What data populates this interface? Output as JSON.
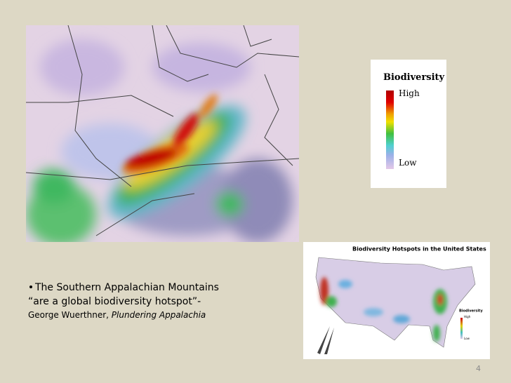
{
  "main_map": {
    "legend": {
      "title": "Biodiversity",
      "high": "High",
      "low": "Low"
    }
  },
  "inset_map": {
    "title": "Biodiversity Hotspots in the United States",
    "legend": {
      "title": "Biodiversity",
      "high": "High",
      "low": "Low"
    }
  },
  "quote": {
    "line1": "The Southern Appalachian Mountains",
    "line2": "“are a global biodiversity hotspot”-",
    "author": "George Wuerthner,",
    "book": "Plundering Appalachia"
  },
  "slide_number": "4"
}
